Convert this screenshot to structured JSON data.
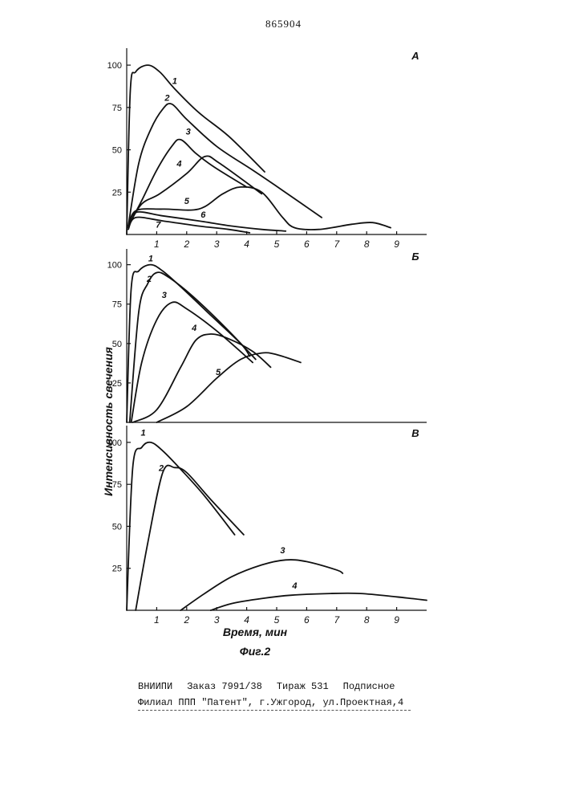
{
  "page_number": "865904",
  "footer": {
    "org": "ВНИИПИ",
    "order": "Заказ 7991/38",
    "circulation": "Тираж 531",
    "subscription": "Подписное",
    "branch": "Филиал ППП \"Патент\", г.Ужгород, ул.Проектная,4"
  },
  "chart_data": {
    "type": "line",
    "ylabel": "Интенсивность свечения",
    "xlabel": "Время, мин",
    "caption": "Фиг.2",
    "panels": [
      {
        "letter": "А",
        "xlim": [
          0,
          10
        ],
        "ylim": [
          0,
          110
        ],
        "x_ticks": [
          1,
          2,
          3,
          4,
          5,
          6,
          7,
          8,
          9
        ],
        "y_ticks": [
          25,
          50,
          75,
          100
        ],
        "series": [
          {
            "name": "1",
            "label_at": [
              1.6,
              89
            ],
            "points": [
              [
                0,
                0
              ],
              [
                0.12,
                85
              ],
              [
                0.3,
                96
              ],
              [
                0.7,
                100
              ],
              [
                1.1,
                96
              ],
              [
                1.6,
                86
              ],
              [
                2.4,
                72
              ],
              [
                3.4,
                58
              ],
              [
                4.6,
                37
              ]
            ]
          },
          {
            "name": "2",
            "label_at": [
              1.35,
              79
            ],
            "points": [
              [
                0.05,
                5
              ],
              [
                0.4,
                42
              ],
              [
                0.8,
                62
              ],
              [
                1.2,
                74
              ],
              [
                1.5,
                77
              ],
              [
                2.0,
                68
              ],
              [
                3.0,
                52
              ],
              [
                4.2,
                38
              ],
              [
                5.2,
                26
              ],
              [
                6.5,
                10
              ]
            ]
          },
          {
            "name": "3",
            "label_at": [
              2.05,
              59
            ],
            "points": [
              [
                0.05,
                5
              ],
              [
                0.5,
                20
              ],
              [
                1.0,
                38
              ],
              [
                1.5,
                52
              ],
              [
                1.8,
                56
              ],
              [
                2.3,
                48
              ],
              [
                2.9,
                40
              ],
              [
                4.0,
                28
              ]
            ]
          },
          {
            "name": "4",
            "label_at": [
              1.75,
              40
            ],
            "points": [
              [
                0.05,
                5
              ],
              [
                0.5,
                18
              ],
              [
                1.1,
                24
              ],
              [
                2.0,
                36
              ],
              [
                2.6,
                46
              ],
              [
                3.1,
                42
              ],
              [
                4.5,
                24
              ]
            ]
          },
          {
            "name": "5",
            "label_at": [
              2.0,
              18
            ],
            "points": [
              [
                0.05,
                4
              ],
              [
                0.3,
                14
              ],
              [
                1.2,
                15
              ],
              [
                2.4,
                15
              ],
              [
                3.2,
                24
              ],
              [
                3.8,
                28
              ],
              [
                4.5,
                25
              ],
              [
                5.2,
                10
              ],
              [
                5.6,
                4
              ],
              [
                6.4,
                3
              ],
              [
                7.5,
                6
              ],
              [
                8.2,
                7
              ],
              [
                8.8,
                4
              ]
            ]
          },
          {
            "name": "6",
            "label_at": [
              2.55,
              10
            ],
            "points": [
              [
                0.05,
                4
              ],
              [
                0.3,
                13
              ],
              [
                1.2,
                11
              ],
              [
                2.4,
                8
              ],
              [
                3.5,
                5
              ],
              [
                4.5,
                3
              ],
              [
                5.3,
                2
              ]
            ]
          },
          {
            "name": "7",
            "label_at": [
              1.05,
              4
            ],
            "points": [
              [
                0.05,
                3
              ],
              [
                0.3,
                10
              ],
              [
                1.2,
                8
              ],
              [
                2.4,
                5
              ],
              [
                3.4,
                3
              ],
              [
                4.1,
                1
              ]
            ]
          }
        ]
      },
      {
        "letter": "Б",
        "xlim": [
          0,
          10
        ],
        "ylim": [
          0,
          110
        ],
        "x_ticks": [],
        "y_ticks": [
          25,
          50,
          75,
          100
        ],
        "series": [
          {
            "name": "1",
            "label_at": [
              0.8,
              102
            ],
            "points": [
              [
                0,
                0
              ],
              [
                0.15,
                85
              ],
              [
                0.4,
                96
              ],
              [
                0.8,
                100
              ],
              [
                1.2,
                96
              ],
              [
                1.8,
                86
              ],
              [
                2.8,
                68
              ],
              [
                3.8,
                50
              ],
              [
                4.1,
                42
              ]
            ]
          },
          {
            "name": "2",
            "label_at": [
              0.75,
              89
            ],
            "points": [
              [
                0.1,
                0
              ],
              [
                0.4,
                70
              ],
              [
                0.7,
                88
              ],
              [
                1.0,
                95
              ],
              [
                1.4,
                92
              ],
              [
                2.2,
                80
              ],
              [
                3.3,
                60
              ],
              [
                4.3,
                40
              ]
            ]
          },
          {
            "name": "3",
            "label_at": [
              1.25,
              79
            ],
            "points": [
              [
                0.15,
                0
              ],
              [
                0.5,
                38
              ],
              [
                1.0,
                65
              ],
              [
                1.5,
                76
              ],
              [
                2.0,
                72
              ],
              [
                3.0,
                58
              ],
              [
                4.2,
                38
              ]
            ]
          },
          {
            "name": "4",
            "label_at": [
              2.25,
              58
            ],
            "points": [
              [
                0.2,
                0
              ],
              [
                1.0,
                8
              ],
              [
                1.8,
                35
              ],
              [
                2.3,
                52
              ],
              [
                2.8,
                56
              ],
              [
                3.4,
                53
              ],
              [
                4.2,
                45
              ],
              [
                4.8,
                35
              ]
            ]
          },
          {
            "name": "5",
            "label_at": [
              3.05,
              30
            ],
            "points": [
              [
                1.0,
                0
              ],
              [
                2.0,
                10
              ],
              [
                3.0,
                28
              ],
              [
                3.8,
                40
              ],
              [
                4.5,
                44
              ],
              [
                5.0,
                43
              ],
              [
                5.8,
                38
              ]
            ]
          }
        ]
      },
      {
        "letter": "В",
        "xlim": [
          0,
          10
        ],
        "ylim": [
          0,
          110
        ],
        "x_ticks": [
          1,
          2,
          3,
          4,
          5,
          6,
          7,
          8,
          9
        ],
        "y_ticks": [
          25,
          50,
          75,
          100
        ],
        "series": [
          {
            "name": "1",
            "label_at": [
              0.55,
              104
            ],
            "points": [
              [
                0,
                0
              ],
              [
                0.2,
                85
              ],
              [
                0.5,
                97
              ],
              [
                0.8,
                100
              ],
              [
                1.2,
                95
              ],
              [
                1.8,
                84
              ],
              [
                2.6,
                68
              ],
              [
                3.6,
                45
              ]
            ]
          },
          {
            "name": "2",
            "label_at": [
              1.15,
              83
            ],
            "points": [
              [
                0.3,
                0
              ],
              [
                0.7,
                40
              ],
              [
                1.2,
                82
              ],
              [
                1.6,
                85
              ],
              [
                2.0,
                82
              ],
              [
                2.8,
                66
              ],
              [
                3.9,
                45
              ]
            ]
          },
          {
            "name": "3",
            "label_at": [
              5.2,
              34
            ],
            "points": [
              [
                1.8,
                0
              ],
              [
                2.6,
                10
              ],
              [
                3.5,
                20
              ],
              [
                4.5,
                27
              ],
              [
                5.3,
                30
              ],
              [
                6.0,
                29
              ],
              [
                7.0,
                24
              ],
              [
                7.2,
                22
              ]
            ]
          },
          {
            "name": "4",
            "label_at": [
              5.6,
              13
            ],
            "points": [
              [
                2.8,
                0
              ],
              [
                3.5,
                4
              ],
              [
                4.5,
                7
              ],
              [
                5.5,
                9
              ],
              [
                6.8,
                10
              ],
              [
                7.8,
                10
              ],
              [
                9.0,
                8
              ],
              [
                10.0,
                6
              ]
            ]
          }
        ]
      }
    ]
  }
}
